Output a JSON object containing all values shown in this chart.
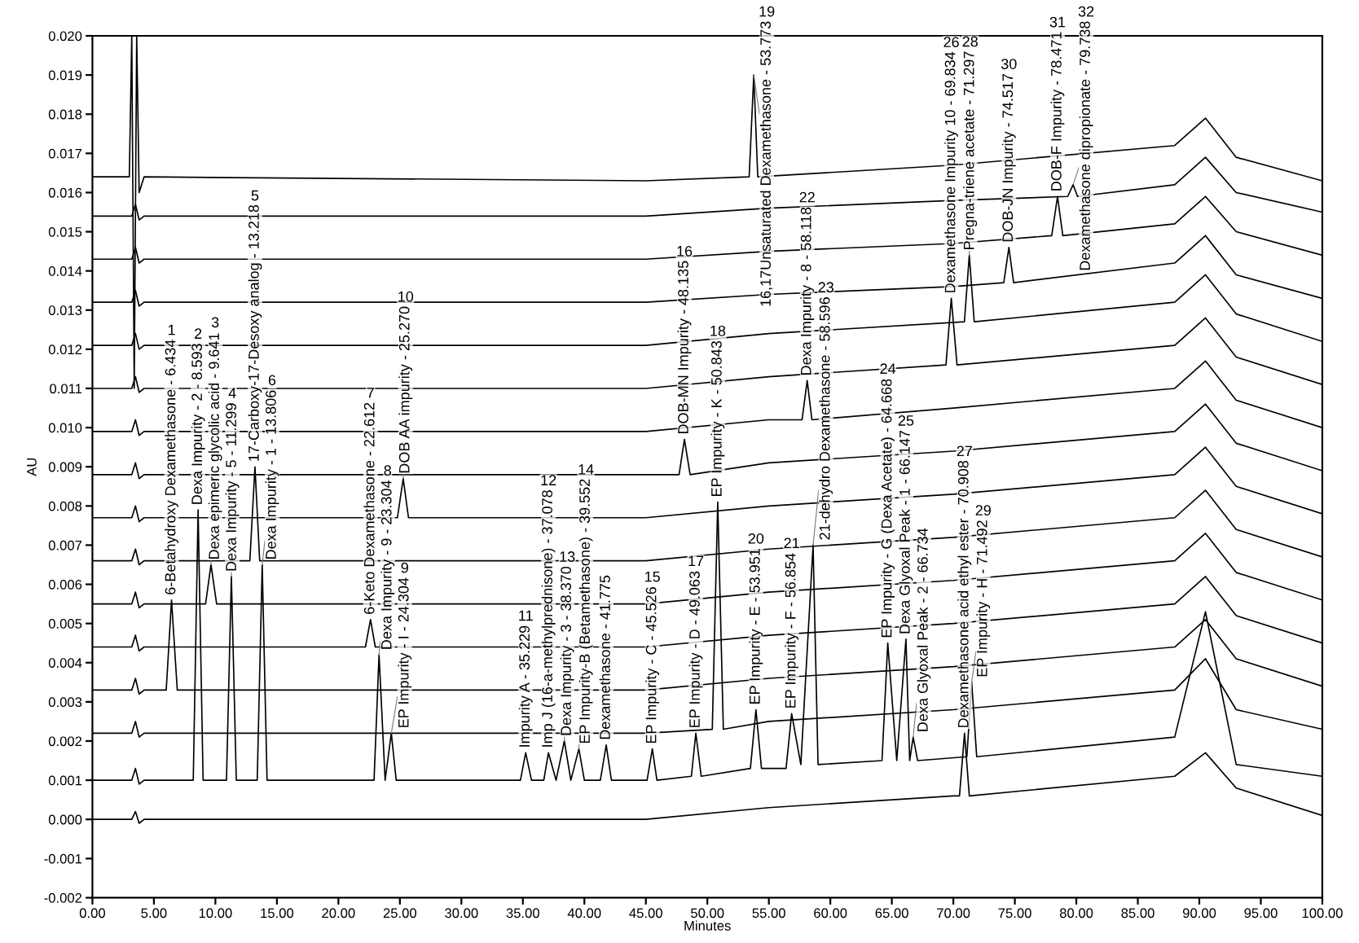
{
  "chart_data": {
    "type": "line",
    "xlabel": "Minutes",
    "ylabel": "AU",
    "xlim": [
      0,
      100
    ],
    "ylim": [
      -0.002,
      0.02
    ],
    "xticks": [
      {
        "value": 0,
        "label": "0.00"
      },
      {
        "value": 5,
        "label": "5.00"
      },
      {
        "value": 10,
        "label": "10.00"
      },
      {
        "value": 15,
        "label": "15.00"
      },
      {
        "value": 20,
        "label": "20.00"
      },
      {
        "value": 25,
        "label": "25.00"
      },
      {
        "value": 30,
        "label": "30.00"
      },
      {
        "value": 35,
        "label": "35.00"
      },
      {
        "value": 40,
        "label": "40.00"
      },
      {
        "value": 45,
        "label": "45.00"
      },
      {
        "value": 50,
        "label": "50.00"
      },
      {
        "value": 55,
        "label": "55.00"
      },
      {
        "value": 60,
        "label": "60.00"
      },
      {
        "value": 65,
        "label": "65.00"
      },
      {
        "value": 70,
        "label": "70.00"
      },
      {
        "value": 75,
        "label": "75.00"
      },
      {
        "value": 80,
        "label": "80.00"
      },
      {
        "value": 85,
        "label": "85.00"
      },
      {
        "value": 90,
        "label": "90.00"
      },
      {
        "value": 95,
        "label": "95.00"
      },
      {
        "value": 100,
        "label": "100.00"
      }
    ],
    "yticks": [
      {
        "value": -0.002,
        "label": "-0.002"
      },
      {
        "value": -0.001,
        "label": "-0.001"
      },
      {
        "value": 0,
        "label": "0.000"
      },
      {
        "value": 0.001,
        "label": "0.001"
      },
      {
        "value": 0.002,
        "label": "0.002"
      },
      {
        "value": 0.003,
        "label": "0.003"
      },
      {
        "value": 0.004,
        "label": "0.004"
      },
      {
        "value": 0.005,
        "label": "0.005"
      },
      {
        "value": 0.006,
        "label": "0.006"
      },
      {
        "value": 0.007,
        "label": "0.007"
      },
      {
        "value": 0.008,
        "label": "0.008"
      },
      {
        "value": 0.009,
        "label": "0.009"
      },
      {
        "value": 0.01,
        "label": "0.010"
      },
      {
        "value": 0.011,
        "label": "0.011"
      },
      {
        "value": 0.012,
        "label": "0.012"
      },
      {
        "value": 0.013,
        "label": "0.013"
      },
      {
        "value": 0.014,
        "label": "0.014"
      },
      {
        "value": 0.015,
        "label": "0.015"
      },
      {
        "value": 0.016,
        "label": "0.016"
      },
      {
        "value": 0.017,
        "label": "0.017"
      },
      {
        "value": 0.018,
        "label": "0.018"
      },
      {
        "value": 0.019,
        "label": "0.019"
      },
      {
        "value": 0.02,
        "label": "0.020"
      }
    ],
    "series": [
      {
        "color": "#000000",
        "x": [
          0,
          3.2,
          3.5,
          3.8,
          4.2,
          45,
          55,
          70,
          70.5,
          70.908,
          71.3,
          88,
          90.5,
          93,
          100
        ],
        "values": [
          0,
          0,
          0.0002,
          -0.0001,
          0,
          0,
          0.0003,
          0.0006,
          0.0006,
          0.0022,
          0.0006,
          0.0011,
          0.0017,
          0.0008,
          0.0001
        ]
      },
      {
        "color": "#000000",
        "x": [
          0,
          3.2,
          3.5,
          3.8,
          4.2,
          8.2,
          8.593,
          9.0,
          10.9,
          11.299,
          11.7,
          13.4,
          13.806,
          14.2,
          22.9,
          23.304,
          23.8,
          24.304,
          24.7,
          34.8,
          35.229,
          35.7,
          36.7,
          37.078,
          37.7,
          38.37,
          38.9,
          39.552,
          40.0,
          41.3,
          41.775,
          42.2,
          45.1,
          45.526,
          45.9,
          48.7,
          49.063,
          49.5,
          53.5,
          53.951,
          54.4,
          56.4,
          56.854,
          57.6,
          58.596,
          59.0,
          64.2,
          64.668,
          65.4,
          66.147,
          66.45,
          66.734,
          67.1,
          71.1,
          71.492,
          71.9,
          88,
          90.5,
          93,
          100
        ],
        "values": [
          0.001,
          0.001,
          0.0013,
          0.0009,
          0.001,
          0.001,
          0.0079,
          0.001,
          0.001,
          0.0062,
          0.001,
          0.001,
          0.0065,
          0.001,
          0.001,
          0.0042,
          0.001,
          0.0022,
          0.001,
          0.001,
          0.0017,
          0.001,
          0.001,
          0.0017,
          0.001,
          0.002,
          0.001,
          0.0018,
          0.001,
          0.001,
          0.0019,
          0.001,
          0.001,
          0.0018,
          0.001,
          0.0011,
          0.0022,
          0.0011,
          0.0013,
          0.0028,
          0.0013,
          0.0013,
          0.0027,
          0.0014,
          0.007,
          0.0014,
          0.0015,
          0.0045,
          0.0015,
          0.0046,
          0.0015,
          0.0021,
          0.0015,
          0.0016,
          0.0035,
          0.0016,
          0.0021,
          0.0053,
          0.0014,
          0.0011
        ]
      },
      {
        "color": "#000000",
        "x": [
          0,
          3.2,
          3.5,
          3.8,
          4.2,
          45,
          50.4,
          50.843,
          51.3,
          55,
          70,
          88,
          90.5,
          93,
          100
        ],
        "values": [
          0.0022,
          0.0022,
          0.0025,
          0.0021,
          0.0022,
          0.0022,
          0.0023,
          0.0081,
          0.0023,
          0.0025,
          0.0028,
          0.0033,
          0.0041,
          0.0028,
          0.0023
        ]
      },
      {
        "color": "#000000",
        "x": [
          0,
          3.2,
          3.5,
          3.8,
          4.2,
          6.0,
          6.434,
          6.9,
          45,
          55,
          70,
          88,
          90.5,
          93,
          100
        ],
        "values": [
          0.0033,
          0.0033,
          0.0036,
          0.0032,
          0.0033,
          0.0033,
          0.0056,
          0.0033,
          0.0033,
          0.0036,
          0.0039,
          0.0044,
          0.0051,
          0.0041,
          0.0034
        ]
      },
      {
        "color": "#000000",
        "x": [
          0,
          3.2,
          3.5,
          3.8,
          4.2,
          22.2,
          22.612,
          23.0,
          45,
          55,
          70,
          88,
          90.5,
          93,
          100
        ],
        "values": [
          0.0044,
          0.0044,
          0.0047,
          0.0043,
          0.0044,
          0.0044,
          0.0051,
          0.0044,
          0.0044,
          0.0047,
          0.005,
          0.0055,
          0.0062,
          0.0052,
          0.0045
        ]
      },
      {
        "color": "#000000",
        "x": [
          0,
          3.2,
          3.5,
          3.8,
          4.2,
          9.2,
          9.641,
          10.1,
          45,
          55,
          70,
          88,
          90.5,
          93,
          100
        ],
        "values": [
          0.0055,
          0.0055,
          0.0058,
          0.0054,
          0.0055,
          0.0055,
          0.0065,
          0.0055,
          0.0055,
          0.0058,
          0.0061,
          0.0066,
          0.0073,
          0.0063,
          0.0056
        ]
      },
      {
        "color": "#000000",
        "x": [
          0,
          3.2,
          3.5,
          3.8,
          4.2,
          12.8,
          13.218,
          13.6,
          45,
          55,
          70,
          88,
          90.5,
          93,
          100
        ],
        "values": [
          0.0066,
          0.0066,
          0.0069,
          0.0065,
          0.0066,
          0.0066,
          0.009,
          0.0066,
          0.0066,
          0.0069,
          0.0072,
          0.0077,
          0.0084,
          0.0074,
          0.0067
        ]
      },
      {
        "color": "#000000",
        "x": [
          0,
          3.2,
          3.5,
          3.8,
          4.2,
          24.8,
          25.27,
          25.7,
          45,
          55,
          70,
          88,
          90.5,
          93,
          100
        ],
        "values": [
          0.0077,
          0.0077,
          0.008,
          0.0076,
          0.0077,
          0.0077,
          0.0087,
          0.0077,
          0.0077,
          0.008,
          0.0083,
          0.0088,
          0.0095,
          0.0085,
          0.0078
        ]
      },
      {
        "color": "#000000",
        "x": [
          0,
          3.2,
          3.5,
          3.8,
          4.2,
          45,
          47.7,
          48.135,
          48.6,
          55,
          70,
          88,
          90.5,
          93,
          100
        ],
        "values": [
          0.0088,
          0.0088,
          0.0091,
          0.0087,
          0.0088,
          0.0088,
          0.0088,
          0.0097,
          0.0088,
          0.0091,
          0.0094,
          0.0099,
          0.0106,
          0.0096,
          0.0089
        ]
      },
      {
        "color": "#000000",
        "x": [
          0,
          3.2,
          3.5,
          3.8,
          4.2,
          45,
          55,
          57.7,
          58.118,
          58.5,
          70,
          88,
          90.5,
          93,
          100
        ],
        "values": [
          0.0099,
          0.0099,
          0.0102,
          0.0098,
          0.0099,
          0.0099,
          0.0102,
          0.0102,
          0.0112,
          0.0102,
          0.0105,
          0.011,
          0.0117,
          0.0107,
          0.01
        ]
      },
      {
        "color": "#000000",
        "x": [
          0,
          3.2,
          3.5,
          3.8,
          4.2,
          45,
          55,
          69.4,
          69.834,
          70.3,
          88,
          90.5,
          93,
          100
        ],
        "values": [
          0.011,
          0.011,
          0.0113,
          0.0109,
          0.011,
          0.011,
          0.0113,
          0.0116,
          0.0133,
          0.0116,
          0.0121,
          0.0128,
          0.0118,
          0.0111
        ]
      },
      {
        "color": "#000000",
        "x": [
          0,
          3.2,
          3.5,
          3.8,
          4.2,
          45,
          55,
          70.9,
          71.297,
          71.7,
          88,
          90.5,
          93,
          100
        ],
        "values": [
          0.0121,
          0.0121,
          0.0124,
          0.012,
          0.0121,
          0.0121,
          0.0124,
          0.0127,
          0.0144,
          0.0127,
          0.0132,
          0.0139,
          0.0129,
          0.0122
        ]
      },
      {
        "color": "#000000",
        "x": [
          0,
          3.2,
          3.5,
          3.8,
          4.2,
          45,
          55,
          70,
          74.1,
          74.517,
          74.9,
          88,
          90.5,
          93,
          100
        ],
        "values": [
          0.0132,
          0.0132,
          0.0135,
          0.0131,
          0.0132,
          0.0132,
          0.0134,
          0.0136,
          0.0137,
          0.0146,
          0.0137,
          0.0142,
          0.0149,
          0.0139,
          0.0133
        ]
      },
      {
        "color": "#000000",
        "x": [
          0,
          3.2,
          3.5,
          3.8,
          4.2,
          45,
          55,
          70,
          78.0,
          78.471,
          78.9,
          88,
          90.5,
          93,
          100
        ],
        "values": [
          0.0143,
          0.0143,
          0.0146,
          0.0142,
          0.0143,
          0.0143,
          0.0145,
          0.0147,
          0.0149,
          0.0159,
          0.0149,
          0.0152,
          0.0159,
          0.015,
          0.0144
        ]
      },
      {
        "color": "#000000",
        "x": [
          0,
          3.2,
          3.5,
          3.8,
          4.2,
          45,
          55,
          70,
          79.3,
          79.738,
          80.1,
          88,
          90.5,
          93,
          100
        ],
        "values": [
          0.0154,
          0.0154,
          0.0157,
          0.0153,
          0.0154,
          0.0154,
          0.0156,
          0.0158,
          0.0159,
          0.0162,
          0.0159,
          0.0162,
          0.0169,
          0.016,
          0.0155
        ]
      },
      {
        "color": "#000000",
        "x": [
          0,
          3.0,
          3.2,
          3.4,
          3.6,
          3.8,
          4.2,
          45,
          53.4,
          53.773,
          54.1,
          70,
          88,
          90.5,
          93,
          100
        ],
        "values": [
          0.0164,
          0.0164,
          0.02,
          0.011,
          0.02,
          0.016,
          0.0164,
          0.0163,
          0.0164,
          0.019,
          0.0164,
          0.0167,
          0.0172,
          0.0179,
          0.0169,
          0.0163
        ]
      }
    ],
    "annotations": [
      {
        "text": "6-Betahydroxy Dexamethasone - 6.434",
        "x": 6.434,
        "y": 0.0056
      },
      "1",
      {
        "text": "Dexa Impurity - 2 - 8.593",
        "x": 8.593,
        "y": 0.0079
      },
      "2",
      {
        "text": "Dexa epimeric glycolic acid - 9.641",
        "x": 9.641,
        "y": 0.0065
      },
      "3",
      {
        "text": "Dexa Impurity - 5 - 11.299",
        "x": 11.299,
        "y": 0.0062
      },
      "4",
      {
        "text": "17-Carboxy-17-Desoxy analog - 13.218",
        "x": 13.218,
        "y": 0.009
      },
      "5",
      {
        "text": "Dexa Impurity - 1 - 13.806",
        "x": 13.806,
        "y": 0.0065
      },
      "6",
      {
        "text": "6-Keto Dexamethasone - 22.612",
        "x": 22.612,
        "y": 0.0051
      },
      "7",
      {
        "text": "Dexa Impurity - 9 - 23.304",
        "x": 23.304,
        "y": 0.0042
      },
      "8",
      {
        "text": "EP Impurity - I - 24.304",
        "x": 24.304,
        "y": 0.0022
      },
      "9",
      {
        "text": "DOB AA impurity - 25.270",
        "x": 25.27,
        "y": 0.0087
      },
      "10",
      {
        "text": "Impurity A - 35.229",
        "x": 35.229,
        "y": 0.0017
      },
      "11",
      {
        "text": "Imp J (16-a-methylprednisone) - 37.078",
        "x": 37.078,
        "y": 0.0017
      },
      "12",
      {
        "text": "Dexa Impurity - 3 - 38.370",
        "x": 38.37,
        "y": 0.002
      },
      "13",
      {
        "text": "EP Impurity-B (Betamethasone) - 39.552",
        "x": 39.552,
        "y": 0.0018
      },
      "14",
      {
        "text": "Dexamethasone - 41.775",
        "x": 41.775,
        "y": 0.0019
      },
      {
        "text": "EP Impurity - C - 45.526",
        "x": 45.526,
        "y": 0.0018
      },
      "15",
      {
        "text": "DOB-MN Impurity - 48.135",
        "x": 48.135,
        "y": 0.0097
      },
      "16",
      {
        "text": "EP Impurity - D - 49.063",
        "x": 49.063,
        "y": 0.0022
      },
      "17",
      {
        "text": "EP Impurity - K - 50.843",
        "x": 50.843,
        "y": 0.0081
      },
      "18",
      {
        "text": "16,17Unsaturated Dexamethasone - 53.773",
        "x": 53.773,
        "y": 0.019
      },
      "19",
      {
        "text": "EP Impurity - E - 53.951",
        "x": 53.951,
        "y": 0.0028
      },
      "20",
      {
        "text": "EP Impurity - F - 56.854",
        "x": 56.854,
        "y": 0.0027
      },
      "21",
      {
        "text": "Dexa Impurity - 8 - 58.118",
        "x": 58.118,
        "y": 0.0112
      },
      "22",
      {
        "text": "21-dehydro Dexamethasone - 58.596",
        "x": 58.596,
        "y": 0.007
      },
      "23",
      {
        "text": "EP Impurity - G (Dexa Acetate) - 64.668",
        "x": 64.668,
        "y": 0.0045
      },
      "24",
      {
        "text": "Dexa Glyoxal Peak - 1 - 66.147",
        "x": 66.147,
        "y": 0.0046
      },
      "25",
      {
        "text": "Dexa Glyoxal Peak - 2 - 66.734",
        "x": 66.734,
        "y": 0.0021
      },
      {
        "text": "Dexamethasone Impurity 10 - 69.834",
        "x": 69.834,
        "y": 0.0133
      },
      "26",
      {
        "text": "Dexamethasone acid ethyl ester - 70.908",
        "x": 70.908,
        "y": 0.0022
      },
      "27",
      {
        "text": "Pregna-triene acetate - 71.297",
        "x": 71.297,
        "y": 0.0144
      },
      "28",
      {
        "text": "EP Impurity - H - 71.492",
        "x": 71.492,
        "y": 0.0035
      },
      "29",
      {
        "text": "DOB-JN Impurity - 74.517",
        "x": 74.517,
        "y": 0.0146
      },
      "30",
      {
        "text": "DOB-F Impurity - 78.471",
        "x": 78.471,
        "y": 0.0159
      },
      "31",
      {
        "text": "Dexamethasone dipropionate - 79.738",
        "x": 79.738,
        "y": 0.0162
      },
      "32"
    ]
  }
}
